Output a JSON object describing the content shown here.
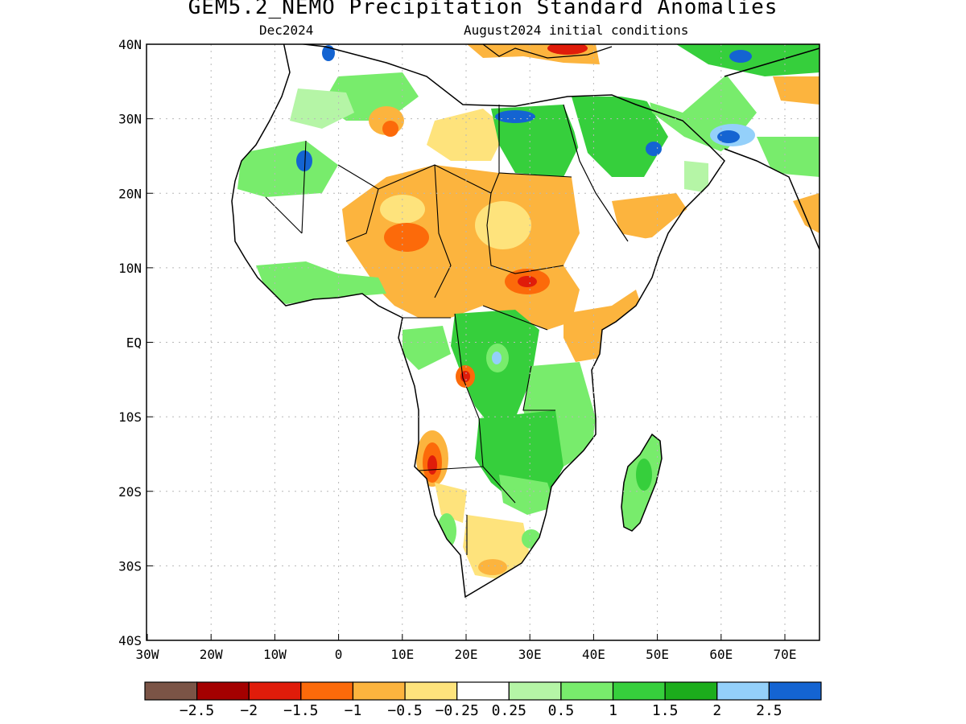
{
  "map": {
    "title": "GEM5.2_NEMO Precipitation Standard Anomalies",
    "target_month": "Dec2024",
    "initial_conditions": "August2024 initial conditions",
    "lat_labels": [
      "40N",
      "30N",
      "20N",
      "10N",
      "EQ",
      "10S",
      "20S",
      "30S",
      "40S"
    ],
    "lon_labels": [
      "30W",
      "20W",
      "10W",
      "0",
      "10E",
      "20E",
      "30E",
      "40E",
      "50E",
      "60E",
      "70E"
    ],
    "region": "Africa"
  },
  "legend": {
    "colors": [
      "#7b5446",
      "#a40000",
      "#e01c0a",
      "#fc6a0a",
      "#fcb43e",
      "#fee37c",
      "#ffffff",
      "#b5f5a6",
      "#78ec6c",
      "#36cf3c",
      "#1cad1c",
      "#94d0fa",
      "#1464d2"
    ],
    "labels": [
      "−2.5",
      "−2",
      "−1.5",
      "−1",
      "−0.5",
      "−0.25",
      "0.25",
      "0.5",
      "1",
      "1.5",
      "2",
      "2.5"
    ]
  }
}
